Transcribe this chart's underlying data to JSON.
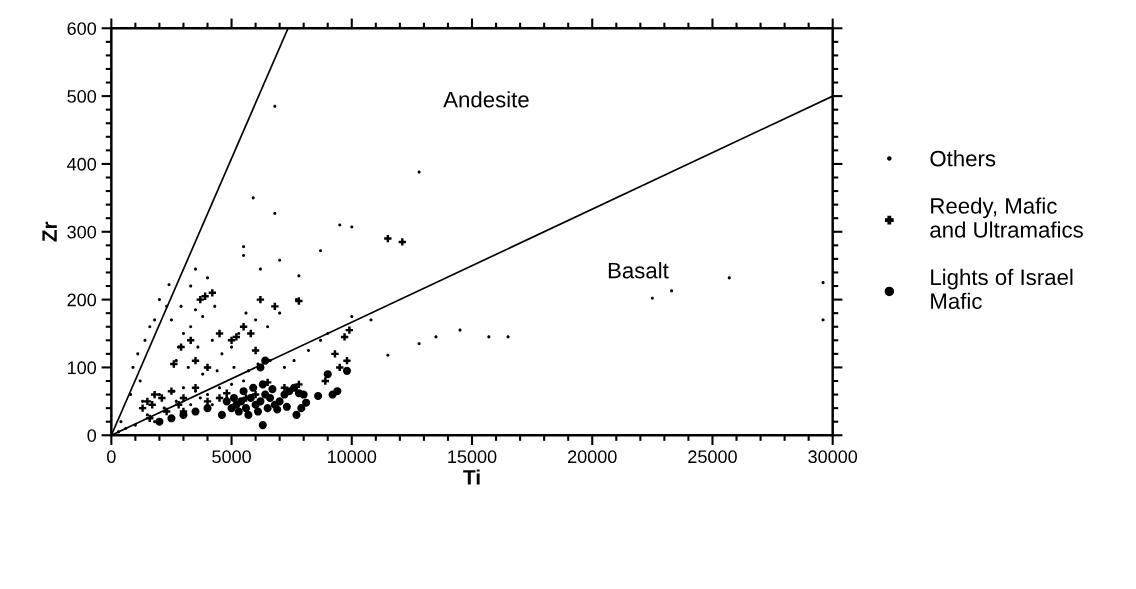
{
  "chart_data": {
    "type": "scatter",
    "xlabel": "Ti",
    "ylabel": "Zr",
    "xlim": [
      0,
      30000
    ],
    "ylim": [
      0,
      600
    ],
    "xticks": [
      0,
      5000,
      10000,
      15000,
      20000,
      25000,
      30000
    ],
    "yticks": [
      0,
      100,
      200,
      300,
      400,
      500,
      600
    ],
    "grid": false,
    "legend": "right",
    "annotations": [
      "Andesite",
      "Basalt"
    ],
    "series": [
      {
        "name": "Others",
        "color": "#000000",
        "marker": "circle",
        "x": [
          6800,
          5900,
          6800,
          9500,
          10000,
          12800,
          8700,
          5500,
          5500,
          7000,
          6200,
          7800,
          3500,
          3300,
          4000,
          2400,
          2000,
          2300,
          1800,
          1600,
          1400,
          1100,
          900,
          1200,
          800,
          2500,
          2900,
          3500,
          3800,
          4300,
          3000,
          3300,
          2800,
          3600,
          4200,
          4600,
          5000,
          5300,
          5600,
          6000,
          6500,
          7000,
          7700,
          2700,
          3200,
          3800,
          4400,
          5100,
          5700,
          6100,
          6600,
          7200,
          7600,
          8200,
          8700,
          9000,
          10000,
          10800,
          11500,
          12800,
          13500,
          14500,
          15700,
          16500,
          22500,
          23300,
          25700,
          29600,
          29600,
          2000,
          2600,
          3000,
          3500,
          4000,
          4500,
          5000,
          5500,
          6000,
          1500,
          1800,
          1000,
          600,
          300,
          2200,
          2700,
          3300,
          3700,
          4200,
          4800,
          1300,
          400
        ],
        "values": [
          485,
          350,
          327,
          310,
          307,
          388,
          272,
          278,
          265,
          258,
          245,
          235,
          245,
          220,
          232,
          222,
          200,
          190,
          170,
          160,
          140,
          120,
          100,
          80,
          60,
          170,
          190,
          185,
          175,
          190,
          150,
          160,
          130,
          130,
          140,
          120,
          130,
          150,
          180,
          170,
          160,
          180,
          200,
          110,
          100,
          90,
          95,
          100,
          95,
          105,
          110,
          100,
          110,
          125,
          140,
          150,
          175,
          170,
          118,
          135,
          145,
          155,
          145,
          145,
          202,
          213,
          232,
          225,
          170,
          60,
          65,
          70,
          65,
          60,
          70,
          75,
          80,
          70,
          30,
          20,
          15,
          10,
          5,
          40,
          50,
          45,
          55,
          45,
          55,
          50,
          20
        ]
      },
      {
        "name": "Reedy, Mafic\nand Ultramafics",
        "color": "#000000",
        "marker": "cross",
        "x": [
          11500,
          12100,
          2600,
          2900,
          3300,
          3700,
          3900,
          4200,
          5000,
          5500,
          5800,
          6200,
          6800,
          7800,
          9900,
          9700,
          9300,
          9500,
          9800,
          8900,
          1300,
          1500,
          1800,
          2100,
          2500,
          3000,
          3500,
          4000,
          4500,
          1700,
          2300,
          4800,
          5600,
          6000,
          6500,
          7200,
          7800,
          3500,
          4000,
          4500,
          5200,
          6000,
          1600,
          2800,
          3000
        ],
        "values": [
          290,
          285,
          105,
          130,
          140,
          200,
          205,
          210,
          140,
          160,
          150,
          200,
          190,
          198,
          155,
          145,
          120,
          100,
          110,
          80,
          40,
          50,
          60,
          55,
          65,
          55,
          70,
          50,
          55,
          45,
          35,
          62,
          55,
          60,
          78,
          70,
          75,
          110,
          100,
          150,
          145,
          125,
          25,
          45,
          35
        ]
      },
      {
        "name": "Lights of Israel\nMafic",
        "color": "#000000",
        "marker": "circle",
        "x": [
          5000,
          5200,
          5400,
          5600,
          5800,
          6000,
          6200,
          6400,
          6600,
          6800,
          7000,
          7200,
          7400,
          7600,
          7800,
          8000,
          5300,
          5700,
          6100,
          6500,
          6900,
          7300,
          7700,
          6300,
          4600,
          5100,
          5500,
          5900,
          6300,
          6700,
          9200,
          9400,
          8600,
          9000,
          9800,
          2500,
          3000,
          3500,
          4000,
          2000,
          4800,
          6200,
          6400,
          8100,
          7900
        ],
        "values": [
          40,
          45,
          50,
          40,
          55,
          45,
          50,
          60,
          55,
          45,
          50,
          60,
          65,
          70,
          62,
          60,
          35,
          30,
          35,
          40,
          38,
          42,
          30,
          15,
          30,
          55,
          65,
          70,
          75,
          68,
          60,
          65,
          58,
          90,
          95,
          25,
          30,
          35,
          40,
          20,
          50,
          100,
          110,
          48,
          40
        ]
      },
      {
        "type": "line",
        "color": "#000000",
        "line_style": "solid",
        "x": [
          0,
          7350
        ],
        "values": [
          0,
          600
        ]
      },
      {
        "type": "line",
        "color": "#000000",
        "line_style": "solid",
        "x": [
          0,
          30000
        ],
        "values": [
          0,
          500
        ]
      }
    ]
  }
}
